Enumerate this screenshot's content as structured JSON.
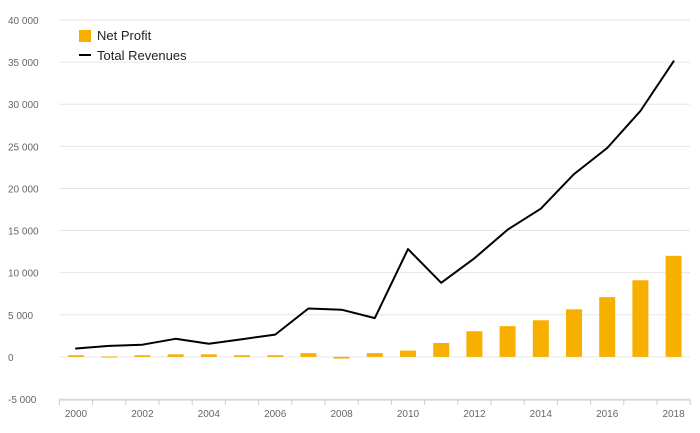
{
  "colors": {
    "bar": "#F7B000",
    "line": "#000000",
    "grid": "#e6e6e6",
    "axis": "#cccccc",
    "tick_text": "#666666"
  },
  "legend": {
    "bar_label": "Net Profit",
    "line_label": "Total Revenues"
  },
  "chart_data": {
    "type": "bar+line",
    "title": "",
    "xlabel": "",
    "ylabel": "",
    "x": [
      2000,
      2001,
      2002,
      2003,
      2004,
      2005,
      2006,
      2007,
      2008,
      2009,
      2010,
      2011,
      2012,
      2013,
      2014,
      2015,
      2016,
      2017,
      2018
    ],
    "series": [
      {
        "name": "Net Profit",
        "type": "bar",
        "values": [
          200,
          50,
          200,
          300,
          300,
          200,
          200,
          450,
          -200,
          450,
          750,
          1650,
          3050,
          3650,
          4350,
          5650,
          7100,
          9100,
          12000
        ]
      },
      {
        "name": "Total Revenues",
        "type": "line",
        "values": [
          1000,
          1300,
          1450,
          2150,
          1550,
          2100,
          2650,
          5750,
          5600,
          4600,
          12800,
          8800,
          11700,
          15100,
          17600,
          21700,
          24800,
          29200,
          35100
        ]
      }
    ],
    "ylim": [
      -5000,
      40000
    ],
    "yticks": [
      -5000,
      0,
      5000,
      10000,
      15000,
      20000,
      25000,
      30000,
      35000,
      40000
    ],
    "ytick_labels": [
      "-5 000",
      "0",
      "5 000",
      "10 000",
      "15 000",
      "20 000",
      "25 000",
      "30 000",
      "35 000",
      "40 000"
    ],
    "xtick_labels": [
      "2000",
      "2002",
      "2004",
      "2006",
      "2008",
      "2010",
      "2012",
      "2014",
      "2016",
      "2018"
    ],
    "xtick_values": [
      2000,
      2002,
      2004,
      2006,
      2008,
      2010,
      2012,
      2014,
      2016,
      2018
    ],
    "grid": true,
    "legend_position": "top-left"
  }
}
